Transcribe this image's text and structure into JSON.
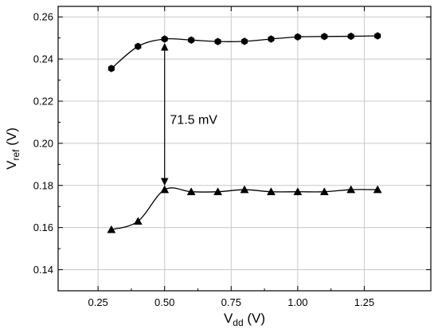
{
  "chart_data": {
    "type": "line",
    "xlabel": {
      "main": "V",
      "sub": "dd",
      "unit": " (V)"
    },
    "ylabel": {
      "main": "V",
      "sub": "ref",
      "unit": " (V)"
    },
    "xlim": [
      0.1,
      1.5
    ],
    "ylim": [
      0.13,
      0.265
    ],
    "grid": true,
    "xticks": [
      0.25,
      0.5,
      0.75,
      1.0,
      1.25
    ],
    "xtick_labels": [
      "0.25",
      "0.50",
      "0.75",
      "1.00",
      "1.25"
    ],
    "yticks": [
      0.14,
      0.16,
      0.18,
      0.2,
      0.22,
      0.24,
      0.26
    ],
    "ytick_labels": [
      "0.14",
      "0.16",
      "0.18",
      "0.20",
      "0.22",
      "0.24",
      "0.26"
    ],
    "series": [
      {
        "marker": "hexagon",
        "x": [
          0.3,
          0.4,
          0.5,
          0.6,
          0.7,
          0.8,
          0.9,
          1.0,
          1.1,
          1.2,
          1.3
        ],
        "values": [
          0.2355,
          0.246,
          0.2495,
          0.249,
          0.2483,
          0.2484,
          0.2495,
          0.2505,
          0.2507,
          0.2508,
          0.251
        ]
      },
      {
        "marker": "triangle",
        "x": [
          0.3,
          0.4,
          0.5,
          0.6,
          0.7,
          0.8,
          0.9,
          1.0,
          1.1,
          1.2,
          1.3
        ],
        "values": [
          0.159,
          0.163,
          0.178,
          0.177,
          0.177,
          0.178,
          0.177,
          0.177,
          0.177,
          0.178,
          0.178
        ]
      }
    ],
    "annotations": [
      {
        "text": "71.5 mV",
        "x": 0.52,
        "y": 0.2115
      }
    ],
    "arrow": {
      "x": 0.5,
      "y_from": 0.2495,
      "y_to": 0.178
    }
  }
}
